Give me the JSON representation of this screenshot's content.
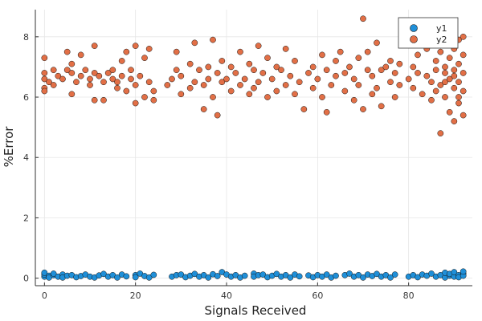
{
  "chart_data": {
    "type": "scatter",
    "xlabel": "Signals Received",
    "ylabel": "%Error",
    "xlim": [
      -2,
      94
    ],
    "ylim": [
      -0.25,
      8.9
    ],
    "xticks": [
      0,
      20,
      40,
      60,
      80
    ],
    "yticks": [
      0,
      2,
      4,
      6,
      8
    ],
    "grid": true,
    "legend_position": "top-right",
    "series": [
      {
        "name": "y1",
        "color": "#1f8fd8",
        "points": [
          [
            0,
            0.05
          ],
          [
            0,
            0.12
          ],
          [
            0,
            0.18
          ],
          [
            1,
            0.08
          ],
          [
            1,
            0.02
          ],
          [
            2,
            0.1
          ],
          [
            2,
            0.15
          ],
          [
            3,
            0.05
          ],
          [
            4,
            0.12
          ],
          [
            4,
            0.02
          ],
          [
            5,
            0.08
          ],
          [
            6,
            0.1
          ],
          [
            7,
            0.03
          ],
          [
            8,
            0.07
          ],
          [
            9,
            0.12
          ],
          [
            10,
            0.05
          ],
          [
            11,
            0.02
          ],
          [
            12,
            0.09
          ],
          [
            13,
            0.14
          ],
          [
            14,
            0.05
          ],
          [
            15,
            0.1
          ],
          [
            16,
            0.02
          ],
          [
            17,
            0.12
          ],
          [
            18,
            0.06
          ],
          [
            20,
            0.1
          ],
          [
            20,
            0.03
          ],
          [
            21,
            0.15
          ],
          [
            22,
            0.07
          ],
          [
            23,
            0.02
          ],
          [
            24,
            0.11
          ],
          [
            28,
            0.05
          ],
          [
            29,
            0.1
          ],
          [
            30,
            0.12
          ],
          [
            31,
            0.03
          ],
          [
            32,
            0.08
          ],
          [
            33,
            0.14
          ],
          [
            34,
            0.05
          ],
          [
            35,
            0.1
          ],
          [
            36,
            0.02
          ],
          [
            37,
            0.13
          ],
          [
            38,
            0.07
          ],
          [
            39,
            0.2
          ],
          [
            40,
            0.12
          ],
          [
            41,
            0.05
          ],
          [
            42,
            0.1
          ],
          [
            43,
            0.02
          ],
          [
            44,
            0.08
          ],
          [
            46,
            0.15
          ],
          [
            46,
            0.05
          ],
          [
            47,
            0.1
          ],
          [
            48,
            0.12
          ],
          [
            49,
            0.03
          ],
          [
            50,
            0.08
          ],
          [
            51,
            0.14
          ],
          [
            52,
            0.05
          ],
          [
            53,
            0.1
          ],
          [
            54,
            0.02
          ],
          [
            55,
            0.12
          ],
          [
            56,
            0.06
          ],
          [
            58,
            0.09
          ],
          [
            59,
            0.03
          ],
          [
            60,
            0.1
          ],
          [
            61,
            0.05
          ],
          [
            62,
            0.12
          ],
          [
            63,
            0.02
          ],
          [
            64,
            0.08
          ],
          [
            66,
            0.1
          ],
          [
            67,
            0.15
          ],
          [
            68,
            0.05
          ],
          [
            69,
            0.1
          ],
          [
            70,
            0.02
          ],
          [
            71,
            0.12
          ],
          [
            72,
            0.07
          ],
          [
            73,
            0.14
          ],
          [
            74,
            0.05
          ],
          [
            75,
            0.1
          ],
          [
            76,
            0.02
          ],
          [
            77,
            0.12
          ],
          [
            80,
            0.05
          ],
          [
            81,
            0.1
          ],
          [
            82,
            0.03
          ],
          [
            83,
            0.12
          ],
          [
            84,
            0.08
          ],
          [
            85,
            0.15
          ],
          [
            86,
            0.05
          ],
          [
            87,
            0.1
          ],
          [
            88,
            0.02
          ],
          [
            88,
            0.18
          ],
          [
            89,
            0.08
          ],
          [
            89,
            0.14
          ],
          [
            90,
            0.05
          ],
          [
            90,
            0.2
          ],
          [
            91,
            0.1
          ],
          [
            91,
            0.03
          ],
          [
            92,
            0.15
          ],
          [
            92,
            0.08
          ],
          [
            92,
            0.22
          ]
        ]
      },
      {
        "name": "y2",
        "color": "#e26f46",
        "points": [
          [
            0,
            6.3
          ],
          [
            0,
            6.6
          ],
          [
            0,
            6.8
          ],
          [
            0,
            7.3
          ],
          [
            0,
            6.2
          ],
          [
            1,
            6.5
          ],
          [
            2,
            6.9
          ],
          [
            2,
            6.4
          ],
          [
            3,
            6.7
          ],
          [
            4,
            6.6
          ],
          [
            5,
            7.5
          ],
          [
            5,
            6.9
          ],
          [
            6,
            6.8
          ],
          [
            6,
            7.1
          ],
          [
            6,
            6.1
          ],
          [
            7,
            6.5
          ],
          [
            8,
            7.4
          ],
          [
            8,
            6.7
          ],
          [
            9,
            6.9
          ],
          [
            10,
            6.4
          ],
          [
            10,
            6.6
          ],
          [
            11,
            6.8
          ],
          [
            11,
            7.7
          ],
          [
            11,
            5.9
          ],
          [
            12,
            6.7
          ],
          [
            13,
            6.5
          ],
          [
            13,
            5.9
          ],
          [
            14,
            6.8
          ],
          [
            15,
            6.9
          ],
          [
            15,
            6.6
          ],
          [
            16,
            6.3
          ],
          [
            16,
            6.5
          ],
          [
            17,
            7.2
          ],
          [
            17,
            6.7
          ],
          [
            18,
            7.5
          ],
          [
            18,
            6.2
          ],
          [
            19,
            6.6
          ],
          [
            19,
            6.9
          ],
          [
            20,
            7.7
          ],
          [
            20,
            6.4
          ],
          [
            20,
            5.8
          ],
          [
            21,
            6.7
          ],
          [
            22,
            7.3
          ],
          [
            22,
            6.0
          ],
          [
            23,
            6.5
          ],
          [
            23,
            7.6
          ],
          [
            24,
            6.2
          ],
          [
            24,
            5.9
          ],
          [
            27,
            6.4
          ],
          [
            28,
            6.6
          ],
          [
            29,
            7.5
          ],
          [
            29,
            6.9
          ],
          [
            30,
            6.1
          ],
          [
            30,
            6.7
          ],
          [
            32,
            6.3
          ],
          [
            32,
            7.1
          ],
          [
            33,
            7.8
          ],
          [
            33,
            6.5
          ],
          [
            34,
            6.9
          ],
          [
            35,
            5.6
          ],
          [
            35,
            6.4
          ],
          [
            36,
            7.0
          ],
          [
            36,
            6.6
          ],
          [
            37,
            6.0
          ],
          [
            37,
            7.9
          ],
          [
            38,
            6.8
          ],
          [
            38,
            5.4
          ],
          [
            39,
            7.2
          ],
          [
            39,
            6.5
          ],
          [
            40,
            6.6
          ],
          [
            41,
            6.2
          ],
          [
            41,
            7.0
          ],
          [
            42,
            6.8
          ],
          [
            43,
            6.4
          ],
          [
            43,
            7.5
          ],
          [
            44,
            6.6
          ],
          [
            45,
            6.1
          ],
          [
            45,
            7.1
          ],
          [
            46,
            6.9
          ],
          [
            46,
            6.3
          ],
          [
            47,
            7.7
          ],
          [
            47,
            6.5
          ],
          [
            48,
            6.8
          ],
          [
            49,
            6.0
          ],
          [
            49,
            7.3
          ],
          [
            50,
            6.6
          ],
          [
            51,
            6.2
          ],
          [
            51,
            7.0
          ],
          [
            52,
            6.9
          ],
          [
            53,
            6.4
          ],
          [
            53,
            7.6
          ],
          [
            54,
            6.7
          ],
          [
            55,
            6.1
          ],
          [
            55,
            7.2
          ],
          [
            56,
            6.5
          ],
          [
            57,
            5.6
          ],
          [
            58,
            6.8
          ],
          [
            59,
            6.3
          ],
          [
            59,
            7.0
          ],
          [
            60,
            6.6
          ],
          [
            61,
            6.0
          ],
          [
            61,
            7.4
          ],
          [
            62,
            5.5
          ],
          [
            62,
            6.9
          ],
          [
            63,
            6.4
          ],
          [
            64,
            7.2
          ],
          [
            64,
            6.7
          ],
          [
            65,
            7.5
          ],
          [
            66,
            6.2
          ],
          [
            66,
            6.8
          ],
          [
            67,
            7.0
          ],
          [
            68,
            5.9
          ],
          [
            68,
            6.6
          ],
          [
            69,
            7.3
          ],
          [
            69,
            6.4
          ],
          [
            70,
            8.6
          ],
          [
            70,
            5.6
          ],
          [
            71,
            6.9
          ],
          [
            71,
            7.5
          ],
          [
            72,
            6.1
          ],
          [
            72,
            6.7
          ],
          [
            73,
            7.8
          ],
          [
            73,
            6.3
          ],
          [
            74,
            5.7
          ],
          [
            74,
            6.9
          ],
          [
            75,
            7.0
          ],
          [
            76,
            6.5
          ],
          [
            76,
            7.2
          ],
          [
            77,
            6.0
          ],
          [
            77,
            6.8
          ],
          [
            78,
            7.1
          ],
          [
            78,
            6.4
          ],
          [
            80,
            6.6
          ],
          [
            81,
            7.0
          ],
          [
            81,
            6.3
          ],
          [
            82,
            6.8
          ],
          [
            82,
            7.4
          ],
          [
            83,
            6.1
          ],
          [
            84,
            6.7
          ],
          [
            84,
            7.6
          ],
          [
            85,
            6.5
          ],
          [
            85,
            5.9
          ],
          [
            86,
            7.2
          ],
          [
            86,
            6.9
          ],
          [
            86,
            6.2
          ],
          [
            87,
            7.5
          ],
          [
            87,
            6.4
          ],
          [
            87,
            4.8
          ],
          [
            88,
            6.8
          ],
          [
            88,
            7.0
          ],
          [
            88,
            6.0
          ],
          [
            88,
            6.5
          ],
          [
            89,
            7.3
          ],
          [
            89,
            5.5
          ],
          [
            89,
            6.6
          ],
          [
            89,
            7.8
          ],
          [
            90,
            6.9
          ],
          [
            90,
            6.3
          ],
          [
            90,
            7.6
          ],
          [
            90,
            5.2
          ],
          [
            90,
            6.7
          ],
          [
            91,
            7.1
          ],
          [
            91,
            6.0
          ],
          [
            91,
            7.9
          ],
          [
            91,
            5.8
          ],
          [
            91,
            6.5
          ],
          [
            92,
            7.4
          ],
          [
            92,
            6.8
          ],
          [
            92,
            5.4
          ],
          [
            92,
            8.0
          ],
          [
            92,
            6.2
          ]
        ]
      }
    ]
  }
}
